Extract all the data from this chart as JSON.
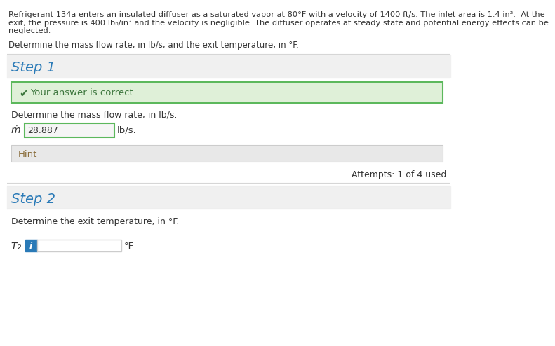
{
  "problem_text_line1": "Refrigerant 134a enters an insulated diffuser as a saturated vapor at 80°F with a velocity of 1400 ft/s. The inlet area is 1.4 in².  At the",
  "problem_text_line2": "exit, the pressure is 400 lbₙ/in² and the velocity is negligible. The diffuser operates at steady state and potential energy effects can be",
  "problem_text_line3": "neglected.",
  "determine_text": "Determine the mass flow rate, in lb/s, and the exit temperature, in °F.",
  "step1_label": "Step 1",
  "correct_text": "Your answer is correct.",
  "mass_flow_label": "Determine the mass flow rate, in lb/s.",
  "mdot_label": "ṁ =",
  "mdot_value": "28.887",
  "mdot_unit": "lb/s.",
  "hint_label": "Hint",
  "attempts_text": "Attempts: 1 of 4 used",
  "step2_label": "Step 2",
  "exit_temp_label": "Determine the exit temperature, in °F.",
  "t2_label": "T₂ =",
  "t2_unit": "°F",
  "bg_color": "#ffffff",
  "gray_bg": "#f0f0f0",
  "green_bg": "#dff0d8",
  "green_border": "#5cb85c",
  "blue_color": "#2a7ab7",
  "dark_text": "#333333",
  "hint_bg": "#e8e8e8",
  "input_bg": "#f5f5f5",
  "input_border_green": "#5cb85c",
  "input_border_gray": "#cccccc",
  "blue_info_bg": "#2a7ab7",
  "separator_color": "#cccccc",
  "check_color": "#3c763d",
  "hint_text_color": "#8a6d3b",
  "line_color": "#d6d6d6"
}
